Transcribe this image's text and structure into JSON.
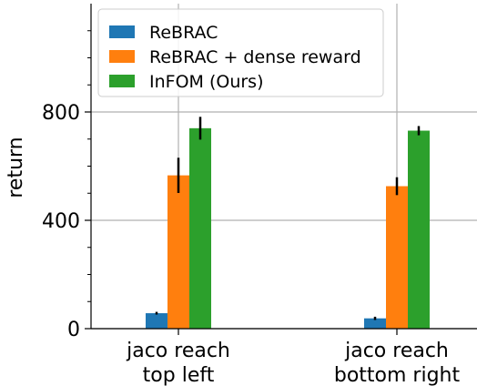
{
  "chart_data": {
    "type": "bar",
    "title": "",
    "xlabel": "",
    "ylabel": "return",
    "categories": [
      [
        "jaco reach",
        "top left"
      ],
      [
        "jaco reach",
        "bottom right"
      ]
    ],
    "ylim": [
      0,
      1200
    ],
    "yticks": [
      0,
      400,
      800
    ],
    "yticks_minor": [
      100,
      200,
      300,
      500,
      600,
      700,
      900,
      1000,
      1100
    ],
    "grid": true,
    "legend_position": "top-left",
    "series": [
      {
        "name": "ReBRAC",
        "color": "#1f77b4",
        "values": [
          57,
          38
        ],
        "errors": [
          5,
          6
        ]
      },
      {
        "name": "ReBRAC + dense reward",
        "color": "#ff7f0e",
        "values": [
          566,
          526
        ],
        "errors": [
          65,
          33
        ]
      },
      {
        "name": "InFOM (Ours)",
        "color": "#2ca02c",
        "values": [
          740,
          731
        ],
        "errors": [
          42,
          17
        ]
      }
    ]
  }
}
